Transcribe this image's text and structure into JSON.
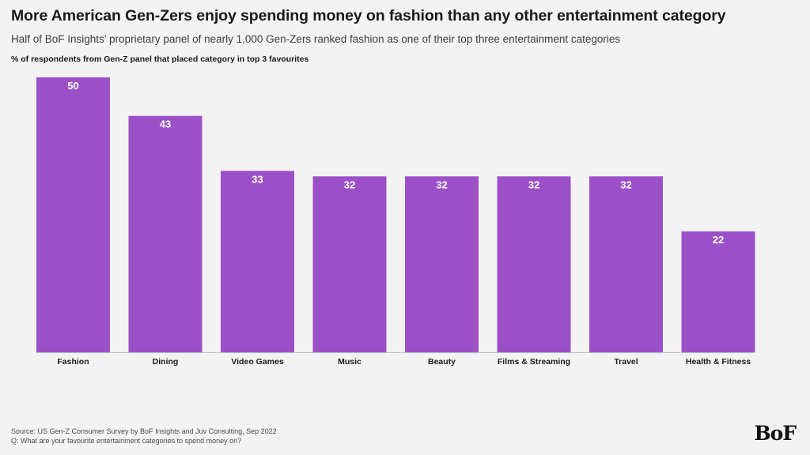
{
  "header": {
    "title": "More American Gen-Zers enjoy spending money on fashion than any other entertainment category",
    "subtitle": "Half of BoF Insights’ proprietary panel of nearly 1,000 Gen-Zers ranked fashion as one of their top three entertainment categories"
  },
  "chart_data": {
    "type": "bar",
    "title": "More American Gen-Zers enjoy spending money on fashion than any other entertainment category",
    "ylabel": "% of respondents from Gen-Z panel that placed category in top 3 favourites",
    "xlabel": "",
    "categories": [
      "Fashion",
      "Dining",
      "Video Games",
      "Music",
      "Beauty",
      "Films & Streaming",
      "Travel",
      "Health & Fitness"
    ],
    "values": [
      50,
      43,
      33,
      32,
      32,
      32,
      32,
      22
    ],
    "ylim": [
      0,
      50
    ],
    "grid": false,
    "legend": "none",
    "data_labels": true,
    "bar_color": "#9c50c8",
    "label_color": "#ffffff"
  },
  "footer": {
    "source": "Source: US Gen-Z Consumer Survey by BoF Insights and Juv Consulting, Sep 2022",
    "question": "Q: What are your favourite entertainment categories to spend money on?"
  },
  "brand": {
    "logo_text": "BoF"
  }
}
